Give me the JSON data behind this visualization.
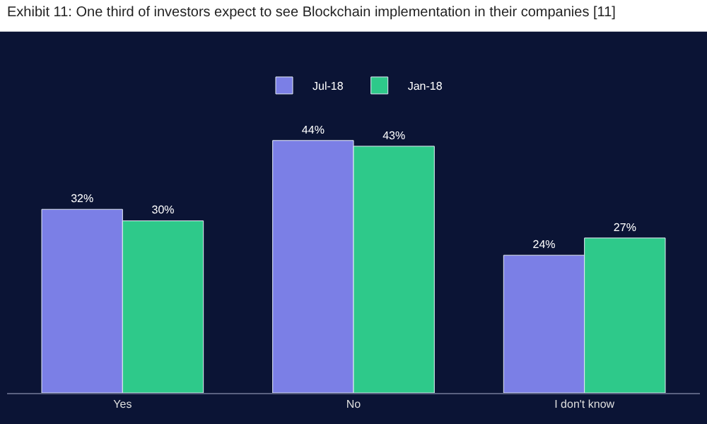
{
  "chart_data": {
    "type": "bar",
    "title": "Exhibit 11: One third of investors expect to see Blockchain implementation in their companies [11]",
    "categories": [
      "Yes",
      "No",
      "I don't know"
    ],
    "series": [
      {
        "name": "Jul-18",
        "color": "#7b7fe6",
        "values": [
          32,
          44,
          24
        ],
        "value_labels": [
          "32%",
          "44%",
          "24%"
        ]
      },
      {
        "name": "Jan-18",
        "color": "#2ec98a",
        "values": [
          30,
          43,
          27
        ],
        "value_labels": [
          "30%",
          "43%",
          "27%"
        ]
      }
    ],
    "tick_labels": "x",
    "grid": false,
    "legend": "top"
  }
}
